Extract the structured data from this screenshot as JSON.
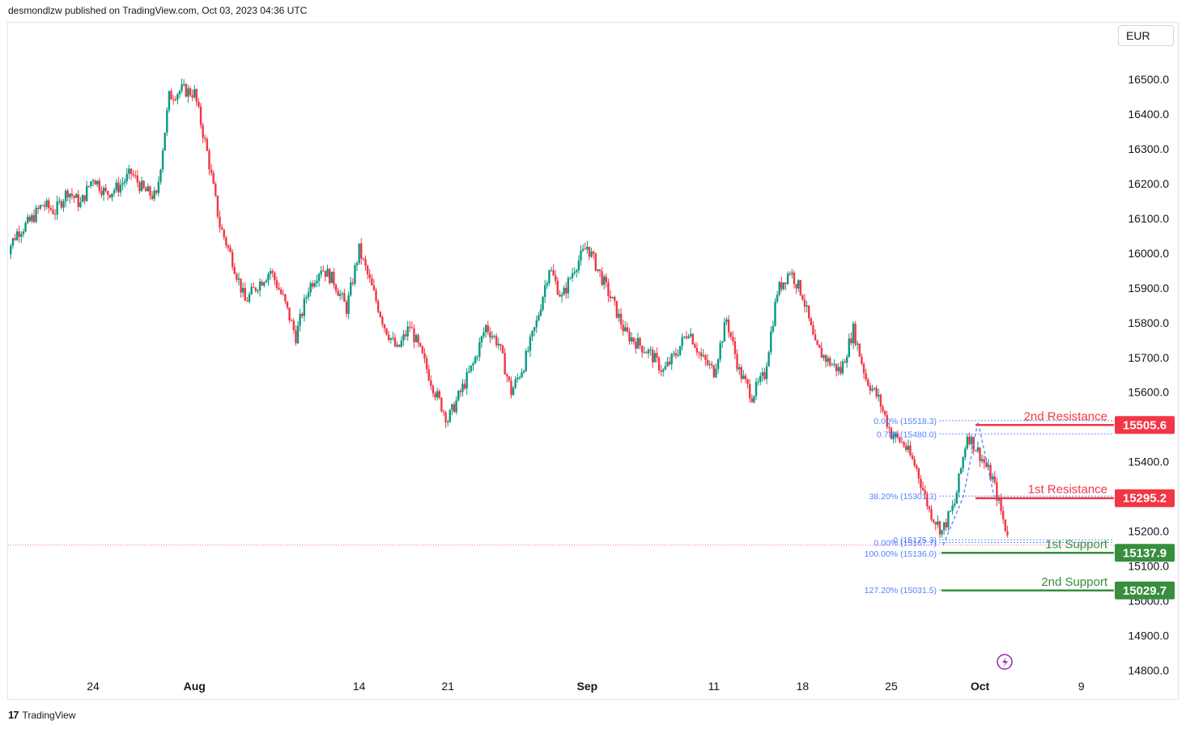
{
  "header": {
    "publisher": "desmondlzw published on TradingView.com, Oct 03, 2023 04:36 UTC"
  },
  "currency": "EUR",
  "footer": {
    "brand": "TradingView"
  },
  "colors": {
    "up": "#089981",
    "down": "#f23645",
    "resistance": "#f23645",
    "support": "#388e3c",
    "fib": "#2962ff"
  },
  "chart_data": {
    "type": "candlestick",
    "title": "",
    "ylabel": "",
    "currency": "EUR",
    "ylim": [
      14790,
      16620
    ],
    "y_ticks": [
      {
        "value": 16500,
        "label": "16500.0"
      },
      {
        "value": 16400,
        "label": "16400.0"
      },
      {
        "value": 16300,
        "label": "16300.0"
      },
      {
        "value": 16200,
        "label": "16200.0"
      },
      {
        "value": 16100,
        "label": "16100.0"
      },
      {
        "value": 16000,
        "label": "16000.0"
      },
      {
        "value": 15900,
        "label": "15900.0"
      },
      {
        "value": 15800,
        "label": "15800.0"
      },
      {
        "value": 15700,
        "label": "15700.0"
      },
      {
        "value": 15600,
        "label": "15600.0"
      },
      {
        "value": 15500,
        "label": "15500.0"
      },
      {
        "value": 15400,
        "label": "15400.0"
      },
      {
        "value": 15300,
        "label": "15300.0"
      },
      {
        "value": 15200,
        "label": "15200.0"
      },
      {
        "value": 15100,
        "label": "15100.0"
      },
      {
        "value": 15000,
        "label": "15000.0"
      },
      {
        "value": 14900,
        "label": "14900.0"
      },
      {
        "value": 14800,
        "label": "14800.0"
      }
    ],
    "x_ticks": [
      {
        "label": "24",
        "day": 0,
        "bold": false
      },
      {
        "label": "Aug",
        "day": 8,
        "bold": true
      },
      {
        "label": "14",
        "day": 21,
        "bold": false
      },
      {
        "label": "21",
        "day": 28,
        "bold": false
      },
      {
        "label": "Sep",
        "day": 39,
        "bold": true
      },
      {
        "label": "11",
        "day": 49,
        "bold": false
      },
      {
        "label": "18",
        "day": 56,
        "bold": false
      },
      {
        "label": "25",
        "day": 63,
        "bold": false
      },
      {
        "label": "Oct",
        "day": 70,
        "bold": true
      },
      {
        "label": "9",
        "day": 78,
        "bold": false
      }
    ],
    "close_path": [
      [
        -7,
        15990
      ],
      [
        -6,
        16060
      ],
      [
        -5,
        16090
      ],
      [
        -4,
        16140
      ],
      [
        -3,
        16120
      ],
      [
        -2,
        16180
      ],
      [
        -1,
        16140
      ],
      [
        0,
        16220
      ],
      [
        1,
        16170
      ],
      [
        2,
        16190
      ],
      [
        3,
        16230
      ],
      [
        4,
        16180
      ],
      [
        5,
        16160
      ],
      [
        6,
        16450
      ],
      [
        7,
        16470
      ],
      [
        8,
        16460
      ],
      [
        9,
        16290
      ],
      [
        10,
        16080
      ],
      [
        11,
        15980
      ],
      [
        12,
        15860
      ],
      [
        13,
        15910
      ],
      [
        14,
        15950
      ],
      [
        15,
        15870
      ],
      [
        16,
        15760
      ],
      [
        17,
        15900
      ],
      [
        18,
        15960
      ],
      [
        19,
        15920
      ],
      [
        20,
        15840
      ],
      [
        21,
        16010
      ],
      [
        22,
        15900
      ],
      [
        23,
        15790
      ],
      [
        24,
        15720
      ],
      [
        25,
        15790
      ],
      [
        26,
        15700
      ],
      [
        27,
        15600
      ],
      [
        28,
        15520
      ],
      [
        29,
        15600
      ],
      [
        30,
        15680
      ],
      [
        31,
        15790
      ],
      [
        32,
        15740
      ],
      [
        33,
        15600
      ],
      [
        34,
        15680
      ],
      [
        35,
        15800
      ],
      [
        36,
        15960
      ],
      [
        37,
        15870
      ],
      [
        38,
        15960
      ],
      [
        39,
        16020
      ],
      [
        40,
        15940
      ],
      [
        41,
        15860
      ],
      [
        42,
        15770
      ],
      [
        43,
        15740
      ],
      [
        44,
        15710
      ],
      [
        45,
        15660
      ],
      [
        46,
        15710
      ],
      [
        47,
        15780
      ],
      [
        48,
        15700
      ],
      [
        49,
        15660
      ],
      [
        50,
        15810
      ],
      [
        51,
        15660
      ],
      [
        52,
        15590
      ],
      [
        53,
        15650
      ],
      [
        54,
        15890
      ],
      [
        55,
        15950
      ],
      [
        56,
        15880
      ],
      [
        57,
        15730
      ],
      [
        58,
        15690
      ],
      [
        59,
        15660
      ],
      [
        60,
        15780
      ],
      [
        61,
        15640
      ],
      [
        62,
        15580
      ],
      [
        63,
        15480
      ],
      [
        64,
        15450
      ],
      [
        65,
        15380
      ],
      [
        66,
        15260
      ],
      [
        67,
        15200
      ],
      [
        68,
        15280
      ],
      [
        69,
        15480
      ],
      [
        70,
        15420
      ],
      [
        71,
        15350
      ],
      [
        72,
        15210
      ],
      [
        73,
        15160
      ]
    ],
    "levels": [
      {
        "name": "2nd Resistance",
        "value": 15505.6,
        "label": "15505.6",
        "kind": "resistance"
      },
      {
        "name": "1st Resistance",
        "value": 15295.2,
        "label": "15295.2",
        "kind": "resistance"
      },
      {
        "name": "1st Support",
        "value": 15137.9,
        "label": "15137.9",
        "kind": "support"
      },
      {
        "name": "2nd Support",
        "value": 15029.7,
        "label": "15029.7",
        "kind": "support"
      }
    ],
    "fib_labels": [
      {
        "text": "0.00% (15518.3)",
        "value": 15518.3
      },
      {
        "text": "0.786 (15480.0)",
        "value": 15480.0
      },
      {
        "text": "38.20% (15301.3)",
        "value": 15301.3
      },
      {
        "text": "0 (15175.3)",
        "value": 15175.3
      },
      {
        "text": "0.00% (15167.7)",
        "value": 15167.7
      },
      {
        "text": "100.00% (15136.0)",
        "value": 15136.0
      },
      {
        "text": "127.20% (15031.5)",
        "value": 15031.5
      }
    ],
    "last_price": 15160,
    "grid": false
  }
}
